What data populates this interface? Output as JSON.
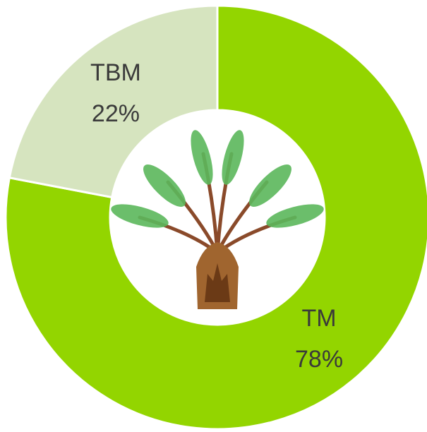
{
  "chart_data": {
    "type": "donut",
    "categories": [
      "TM",
      "TBM"
    ],
    "values": [
      78,
      22
    ],
    "value_labels": [
      "78%",
      "22%"
    ],
    "colors": [
      "#93d500",
      "#d6e4bf"
    ]
  }
}
